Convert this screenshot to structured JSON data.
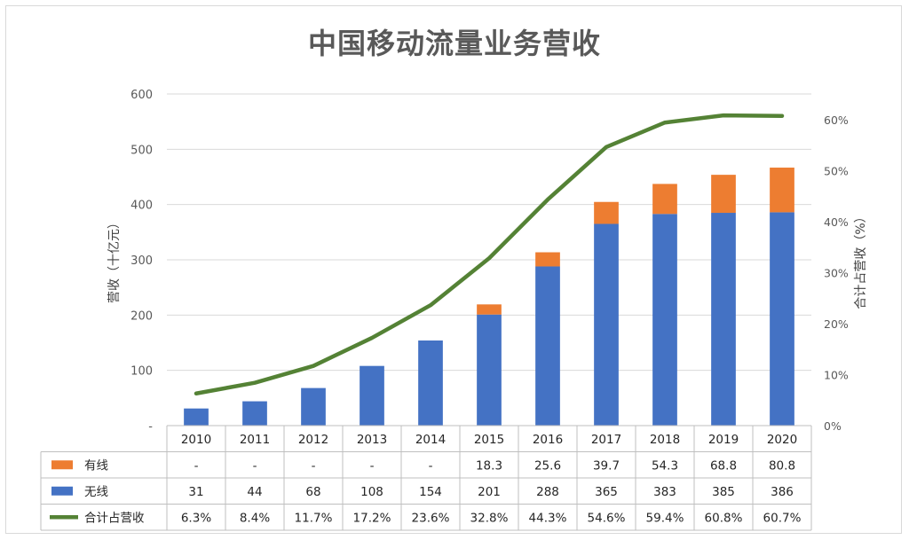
{
  "chart_data": {
    "type": "bar",
    "title": "中国移动流量业务营收",
    "categories": [
      "2010",
      "2011",
      "2012",
      "2013",
      "2014",
      "2015",
      "2016",
      "2017",
      "2018",
      "2019",
      "2020"
    ],
    "series": [
      {
        "name": "无线",
        "kind": "bar",
        "axis": "left",
        "color": "#4472c4",
        "values": [
          31,
          44,
          68,
          108,
          154,
          201,
          288,
          365,
          383,
          385,
          386
        ],
        "labels": [
          "31",
          "44",
          "68",
          "108",
          "154",
          "201",
          "288",
          "365",
          "383",
          "385",
          "386"
        ]
      },
      {
        "name": "有线",
        "kind": "bar",
        "axis": "left",
        "color": "#ed7d31",
        "values": [
          0,
          0,
          0,
          0,
          0,
          18.3,
          25.6,
          39.7,
          54.3,
          68.8,
          80.8
        ],
        "labels": [
          "-",
          "-",
          "-",
          "-",
          "-",
          "18.3",
          "25.6",
          "39.7",
          "54.3",
          "68.8",
          "80.8"
        ]
      },
      {
        "name": "合计占营收",
        "kind": "line",
        "axis": "right",
        "color": "#548235",
        "values": [
          6.3,
          8.4,
          11.7,
          17.2,
          23.6,
          32.8,
          44.3,
          54.6,
          59.4,
          60.8,
          60.7
        ],
        "labels": [
          "6.3%",
          "8.4%",
          "11.7%",
          "17.2%",
          "23.6%",
          "32.8%",
          "44.3%",
          "54.6%",
          "59.4%",
          "60.8%",
          "60.7%"
        ]
      }
    ],
    "ylabel": "营收（十亿元）",
    "ylabel_right": "合计占营收（%）",
    "ylim": [
      0,
      600
    ],
    "ylim_right": [
      0,
      65
    ],
    "yticks": [
      "-",
      "100",
      "200",
      "300",
      "400",
      "500",
      "600"
    ],
    "yticks_right": [
      "0%",
      "10%",
      "20%",
      "30%",
      "40%",
      "50%",
      "60%"
    ],
    "grid": true,
    "data_table": true,
    "table_row_order": [
      "有线",
      "无线",
      "合计占营收"
    ]
  }
}
